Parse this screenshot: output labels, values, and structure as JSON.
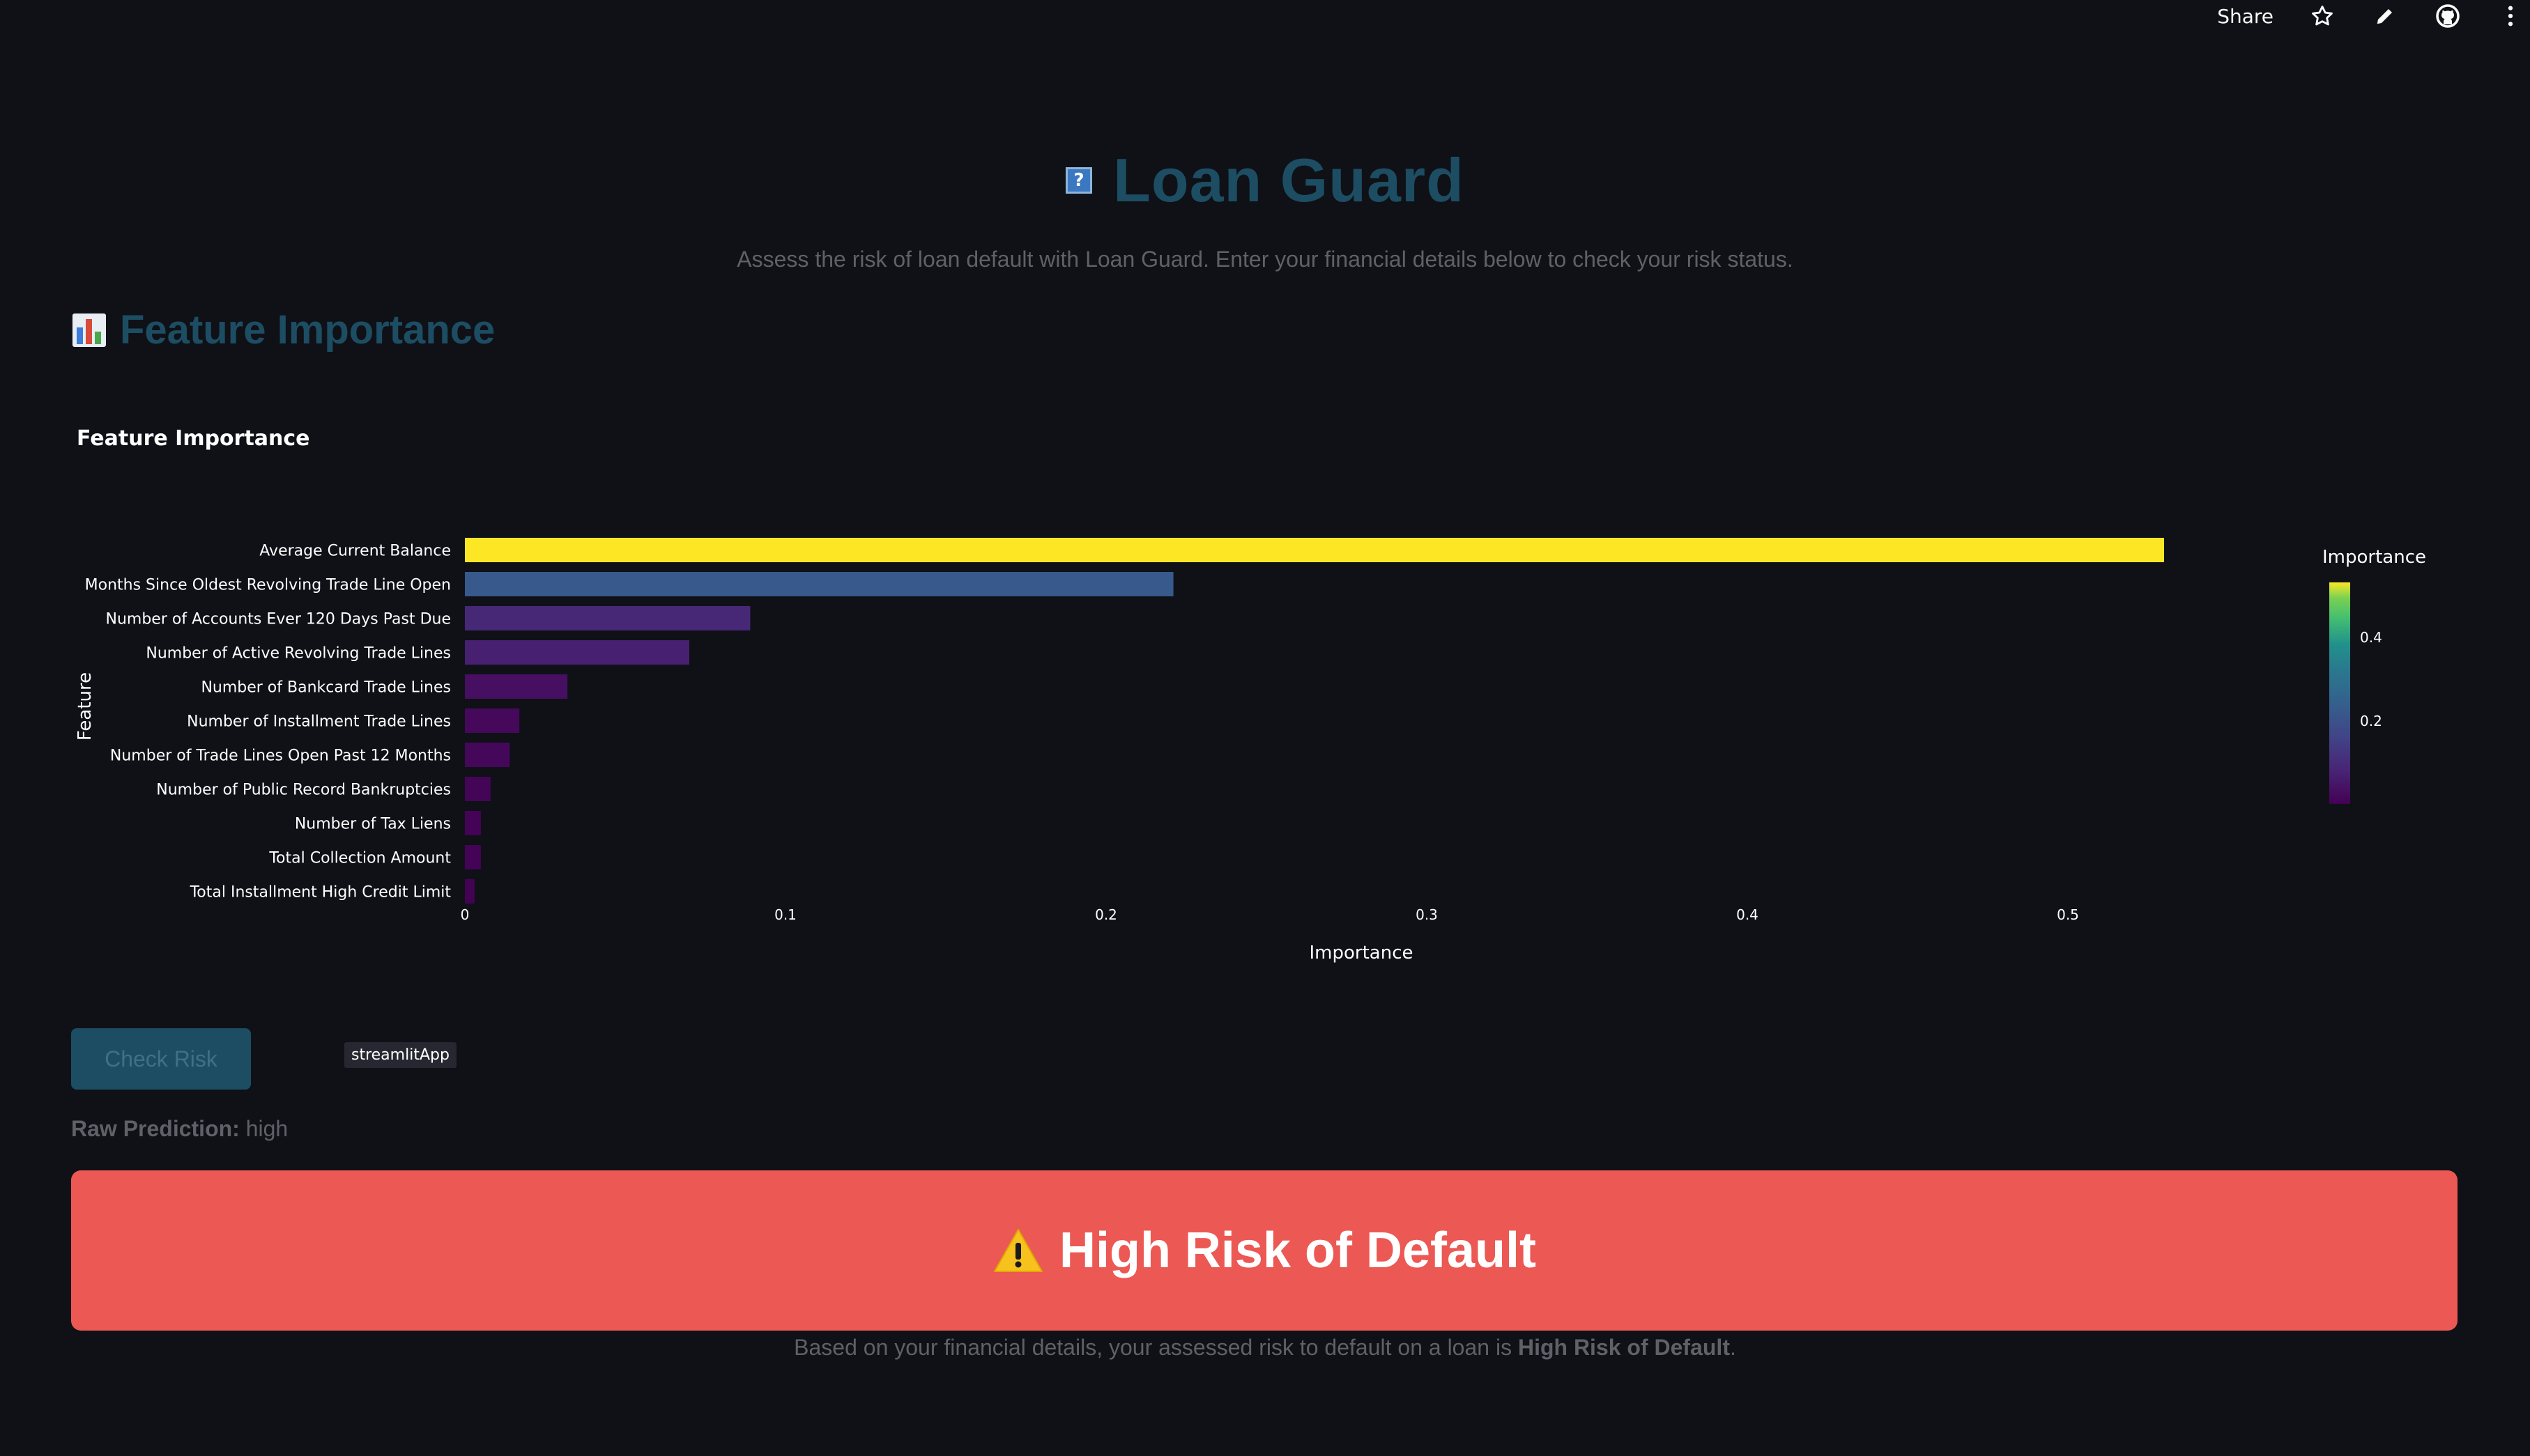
{
  "topbar": {
    "share_label": "Share",
    "icons": [
      "star-icon",
      "pencil-icon",
      "github-icon",
      "more-vertical-icon"
    ]
  },
  "header": {
    "title": "Loan Guard",
    "icon_glyph": "?",
    "subtitle": "Assess the risk of loan default with Loan Guard. Enter your financial details below to check your risk status."
  },
  "section": {
    "title": "Feature Importance",
    "icon": "bar-chart-icon"
  },
  "chart_data": {
    "type": "bar",
    "orientation": "horizontal",
    "title": "Feature Importance",
    "xlabel": "Importance",
    "ylabel": "Feature",
    "xlim": [
      0,
      0.5
    ],
    "xticks": [
      0,
      0.1,
      0.2,
      0.3,
      0.4,
      0.5
    ],
    "categories": [
      "Average Current Balance",
      "Months Since Oldest Revolving Trade Line Open",
      "Number of Accounts Ever 120 Days Past Due",
      "Number of Active Revolving Trade Lines",
      "Number of Bankcard Trade Lines",
      "Number of Installment Trade Lines",
      "Number of Trade Lines Open Past 12 Months",
      "Number of Public Record Bankruptcies",
      "Number of Tax Liens",
      "Total Collection Amount",
      "Total Installment High Credit Limit"
    ],
    "values": [
      0.53,
      0.221,
      0.089,
      0.07,
      0.032,
      0.017,
      0.014,
      0.008,
      0.005,
      0.005,
      0.003
    ],
    "colorbar": {
      "title": "Importance",
      "ticks": [
        0.2,
        0.4
      ],
      "colorscale": "viridis",
      "range": [
        0,
        0.53
      ]
    },
    "grid": false,
    "legend": "colorbar-right"
  },
  "actions": {
    "check_risk_label": "Check Risk",
    "tooltip_text": "streamlitApp"
  },
  "prediction": {
    "raw_label": "Raw Prediction:",
    "raw_value": "high"
  },
  "result": {
    "icon": "warning-icon",
    "headline": "High Risk of Default",
    "desc_prefix": "Based on your financial details, your assessed risk to default on a loan is ",
    "desc_bold": "High Risk of Default",
    "desc_suffix": ".",
    "color": "#ec5853"
  }
}
